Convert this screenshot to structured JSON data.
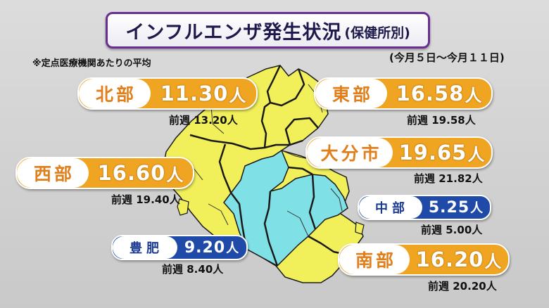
{
  "title": {
    "main": "インフルエンザ発生状況",
    "sub": "(保健所別)"
  },
  "note": "※定点医療機関あたりの平均",
  "period": "(今月５日～今月１１日)",
  "unit": "人",
  "prev_prefix": "前週",
  "map": {
    "colors": {
      "yellow": "#f1ef5a",
      "cyan": "#7fe0e6",
      "border": "#1a1a1a"
    }
  },
  "regions": {
    "hokubu": {
      "name": "北部",
      "value": "11.30",
      "prev": "13.20人",
      "color": "#efa422"
    },
    "tobu": {
      "name": "東部",
      "value": "16.58",
      "prev": "19.58人",
      "color": "#efa422"
    },
    "oita": {
      "name": "大分市",
      "value": "19.65",
      "prev": "21.82人",
      "color": "#efa422"
    },
    "seibu": {
      "name": "西部",
      "value": "16.60",
      "prev": "19.40人",
      "color": "#efa422"
    },
    "chubu": {
      "name": "中部",
      "value": "5.25",
      "prev": "5.00人",
      "color": "#1f4aa8"
    },
    "hohi": {
      "name": "豊肥",
      "value": "9.20",
      "prev": "8.40人",
      "color": "#1f4aa8"
    },
    "nanbu": {
      "name": "南部",
      "value": "16.20",
      "prev": "20.20人",
      "color": "#efa422"
    }
  }
}
